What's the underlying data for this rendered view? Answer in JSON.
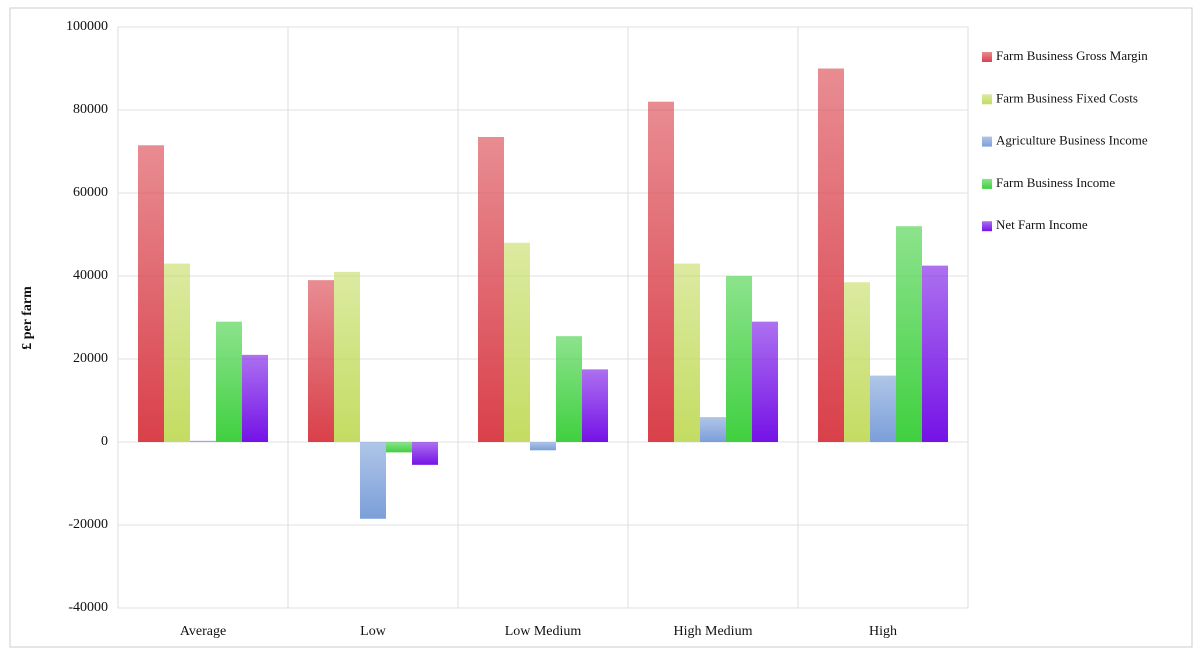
{
  "chart_data": {
    "type": "bar",
    "y_label": "£ per farm",
    "categories": [
      "Average",
      "Low",
      "Low Medium",
      "High Medium",
      "High"
    ],
    "series": [
      {
        "name": "Farm Business Gross Margin",
        "color": "#d9404a",
        "values": [
          71500,
          39000,
          73500,
          82000,
          90000
        ]
      },
      {
        "name": "Farm Business Fixed Costs",
        "color": "#c4dc62",
        "values": [
          43000,
          41000,
          48000,
          43000,
          38500
        ]
      },
      {
        "name": "Agriculture Business Income",
        "color": "#7b9fd9",
        "values": [
          300,
          -18500,
          -2000,
          6000,
          16000
        ]
      },
      {
        "name": "Farm Business Income",
        "color": "#40d040",
        "values": [
          29000,
          -2500,
          25500,
          40000,
          52000
        ]
      },
      {
        "name": "Net Farm Income",
        "color": "#7512e6",
        "values": [
          21000,
          -5500,
          17500,
          29000,
          42500
        ]
      }
    ],
    "ylim": [
      -40000,
      100000
    ],
    "yticks": [
      -40000,
      -20000,
      0,
      20000,
      40000,
      60000,
      80000,
      100000
    ],
    "grid": true,
    "legend": "right"
  }
}
